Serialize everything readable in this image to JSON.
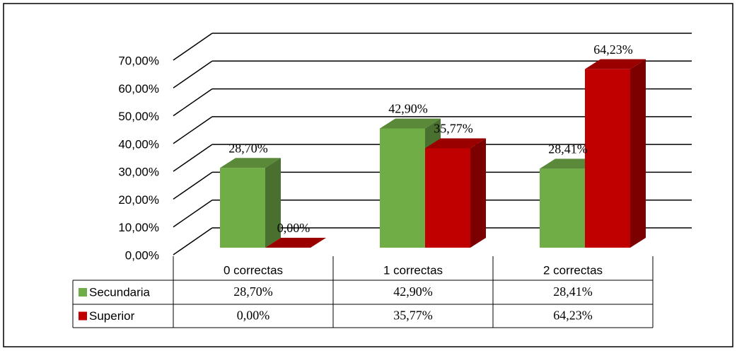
{
  "chart_data": {
    "type": "bar3d",
    "categories": [
      "0 correctas",
      "1 correctas",
      "2 correctas"
    ],
    "series": [
      {
        "name": "Secundaria",
        "color": "#70ad47",
        "values": [
          28.7,
          42.9,
          28.41
        ],
        "value_labels": [
          "28,70%",
          "42,90%",
          "28,41%"
        ]
      },
      {
        "name": "Superior",
        "color": "#c00000",
        "values": [
          0,
          35.77,
          64.23
        ],
        "value_labels": [
          "0,00%",
          "35,77%",
          "64,23%"
        ]
      }
    ],
    "ylim": [
      0,
      70
    ],
    "yticks": [
      {
        "value": 0,
        "label": "0,00%"
      },
      {
        "value": 10,
        "label": "10,00%"
      },
      {
        "value": 20,
        "label": "20,00%"
      },
      {
        "value": 30,
        "label": "30,00%"
      },
      {
        "value": 40,
        "label": "40,00%"
      },
      {
        "value": 50,
        "label": "50,00%"
      },
      {
        "value": 60,
        "label": "60,00%"
      },
      {
        "value": 70,
        "label": "70,00%"
      }
    ],
    "grid": true,
    "data_table": true
  }
}
